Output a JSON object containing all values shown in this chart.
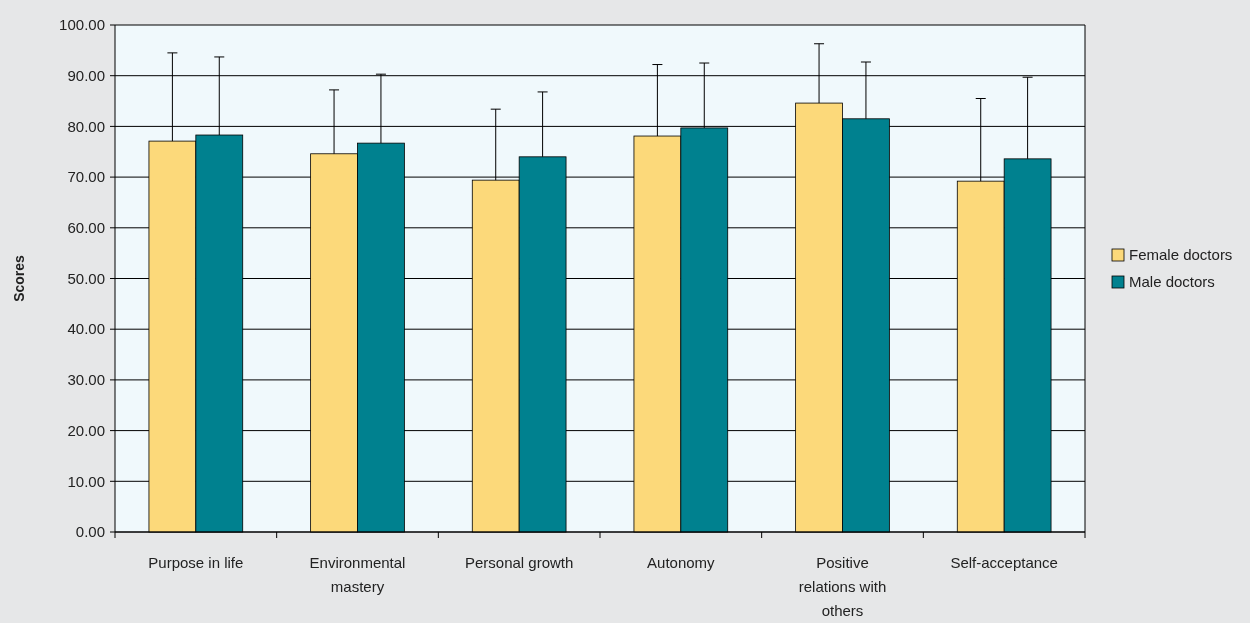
{
  "chart_data": {
    "type": "bar",
    "ylabel": "Scores",
    "categories": [
      "Purpose in life",
      "Environmental mastery",
      "Personal growth",
      "Autonomy",
      "Positive relations with others",
      "Self-acceptance"
    ],
    "series": [
      {
        "name": "Female doctors",
        "color": "#fcd97a",
        "values": [
          77.1,
          74.6,
          69.4,
          78.1,
          84.6,
          69.2
        ],
        "errors": [
          [
            77.1,
            94.5
          ],
          [
            74.6,
            87.2
          ],
          [
            69.4,
            83.4
          ],
          [
            78.1,
            92.2
          ],
          [
            84.6,
            96.3
          ],
          [
            69.2,
            85.5
          ]
        ]
      },
      {
        "name": "Male doctors",
        "color": "#00818f",
        "values": [
          78.3,
          76.7,
          74.0,
          79.7,
          81.5,
          73.6
        ],
        "errors": [
          [
            78.3,
            93.7
          ],
          [
            76.7,
            90.3
          ],
          [
            74.0,
            86.8
          ],
          [
            79.7,
            92.5
          ],
          [
            81.5,
            92.7
          ],
          [
            73.6,
            89.7
          ]
        ]
      }
    ],
    "ylim": [
      0,
      100
    ],
    "yticks": [
      {
        "value": 0,
        "label": "0.00"
      },
      {
        "value": 10,
        "label": "10.00"
      },
      {
        "value": 20,
        "label": "20.00"
      },
      {
        "value": 30,
        "label": "30.00"
      },
      {
        "value": 40,
        "label": "40.00"
      },
      {
        "value": 50,
        "label": "50.00"
      },
      {
        "value": 60,
        "label": "60.00"
      },
      {
        "value": 70,
        "label": "70.00"
      },
      {
        "value": 80,
        "label": "80.00"
      },
      {
        "value": 90,
        "label": "90.00"
      },
      {
        "value": 100,
        "label": "100.00"
      }
    ],
    "grid": "y",
    "legend": "right"
  }
}
